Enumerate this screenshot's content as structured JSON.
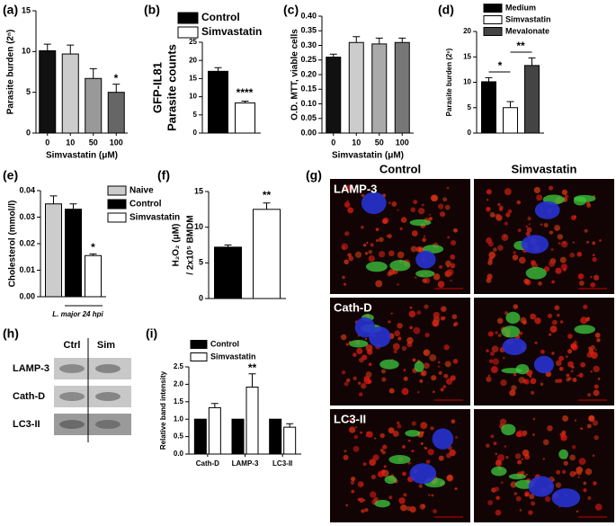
{
  "chart_data": [
    {
      "type": "bar",
      "panel": "(a)",
      "ylabel": "Parasite burden (2ⁿ)",
      "xlabel": "Simvastatin (μM)",
      "categories": [
        "0",
        "10",
        "50",
        "100"
      ],
      "series": [
        {
          "values": [
            10.1,
            9.7,
            6.7,
            5.0
          ],
          "errors": [
            0.8,
            1.1,
            1.2,
            1.0
          ],
          "colors": [
            "#111111",
            "#cccccc",
            "#999999",
            "#666666"
          ]
        }
      ],
      "ylim": [
        0,
        15
      ],
      "yticks": [
        0,
        5,
        10,
        15
      ],
      "annotations": [
        "*"
      ]
    },
    {
      "type": "bar",
      "panel": "(b)",
      "ylabel": [
        "GFP-IL81",
        "Parasite counts"
      ],
      "series": [
        {
          "name": "Control",
          "color": "#000000",
          "values": [
            17.0
          ],
          "errors": [
            1.0
          ]
        },
        {
          "name": "Simvastatin",
          "color": "#ffffff",
          "values": [
            8.3
          ],
          "errors": [
            0.5
          ]
        }
      ],
      "ylim": [
        0,
        25
      ],
      "yticks": [
        0,
        5,
        10,
        15,
        20,
        25
      ],
      "annotations": [
        "****"
      ]
    },
    {
      "type": "bar",
      "panel": "(c)",
      "ylabel": "O.D. MTT, viable cells",
      "xlabel": "Simvastatin (μM)",
      "categories": [
        "0",
        "10",
        "50",
        "100"
      ],
      "series": [
        {
          "values": [
            0.26,
            0.31,
            0.305,
            0.31
          ],
          "errors": [
            0.01,
            0.02,
            0.02,
            0.015
          ],
          "colors": [
            "#111111",
            "#cccccc",
            "#aaaaaa",
            "#777777"
          ]
        }
      ],
      "ylim": [
        0,
        0.4
      ],
      "yticks": [
        {
          "value": 0,
          "label": "0.00"
        },
        {
          "value": 0.05,
          "label": "0.05"
        },
        {
          "value": 0.1,
          "label": "0.10"
        },
        {
          "value": 0.15,
          "label": "0.15"
        },
        {
          "value": 0.2,
          "label": "0.20"
        },
        {
          "value": 0.25,
          "label": "0.25"
        },
        {
          "value": 0.3,
          "label": "0.30"
        },
        {
          "value": 0.35,
          "label": "0.35"
        },
        {
          "value": 0.4,
          "label": "0.40"
        }
      ]
    },
    {
      "type": "bar",
      "panel": "(d)",
      "ylabel": "Parasite burden (2ⁿ)",
      "series": [
        {
          "name": "Medium",
          "color": "#000000",
          "values": [
            10.1
          ],
          "errors": [
            0.8
          ]
        },
        {
          "name": "Simvastatin",
          "color": "#ffffff",
          "values": [
            5.0
          ],
          "errors": [
            1.2
          ]
        },
        {
          "name": "Mevalonate",
          "color": "#444444",
          "values": [
            13.3
          ],
          "errors": [
            1.5
          ]
        }
      ],
      "ylim": [
        0,
        20
      ],
      "yticks": [
        0,
        5,
        10,
        15,
        20
      ],
      "annotations": [
        "*",
        "**"
      ]
    },
    {
      "type": "bar",
      "panel": "(e)",
      "ylabel": "Cholesterol (mmol/l)",
      "xlabel": "L. major 24 hpi",
      "series": [
        {
          "name": "Naive",
          "color": "#cccccc",
          "values": [
            0.035
          ],
          "errors": [
            0.003
          ]
        },
        {
          "name": "Control",
          "color": "#000000",
          "values": [
            0.033
          ],
          "errors": [
            0.002
          ]
        },
        {
          "name": "Simvastatin",
          "color": "#ffffff",
          "values": [
            0.0155
          ],
          "errors": [
            0.0006
          ]
        }
      ],
      "ylim": [
        0,
        0.04
      ],
      "yticks": [
        {
          "value": 0,
          "label": "0.00"
        },
        {
          "value": 0.01,
          "label": "0.01"
        },
        {
          "value": 0.02,
          "label": "0.02"
        },
        {
          "value": 0.03,
          "label": "0.03"
        },
        {
          "value": 0.04,
          "label": "0.04"
        }
      ],
      "annotations": [
        "*"
      ]
    },
    {
      "type": "bar",
      "panel": "(f)",
      "ylabel": [
        "H₂O₂ (μM)",
        "/ 2x10⁵ BMDM"
      ],
      "series": [
        {
          "values": [
            7.2,
            12.5
          ],
          "errors": [
            0.3,
            0.9
          ],
          "colors": [
            "#000000",
            "#ffffff"
          ]
        }
      ],
      "ylim": [
        0,
        15
      ],
      "yticks": [
        0,
        5,
        10,
        15
      ],
      "annotations": [
        "**"
      ]
    },
    {
      "type": "bar",
      "panel": "(i)",
      "ylabel": "Relative band intensity",
      "categories": [
        "Cath-D",
        "LAMP-3",
        "LC3-II"
      ],
      "series": [
        {
          "name": "Control",
          "color": "#000000",
          "values": [
            1.0,
            1.0,
            1.0
          ]
        },
        {
          "name": "Simvastatin",
          "color": "#ffffff",
          "values": [
            1.33,
            1.92,
            0.77
          ],
          "errors": [
            0.12,
            0.38,
            0.1
          ]
        }
      ],
      "ylim": [
        0,
        2.5
      ],
      "yticks": [
        {
          "value": 0,
          "label": "0.0"
        },
        {
          "value": 0.5,
          "label": "0.5"
        },
        {
          "value": 1,
          "label": "1.0"
        },
        {
          "value": 1.5,
          "label": "1.5"
        },
        {
          "value": 2,
          "label": "2.0"
        },
        {
          "value": 2.5,
          "label": "2.5"
        }
      ],
      "annotations": [
        "**"
      ]
    }
  ],
  "micrograph": {
    "panel": "(g)",
    "columns": [
      "Control",
      "Simvastatin"
    ],
    "rows": [
      "LAMP-3",
      "Cath-D",
      "LC3-II"
    ]
  },
  "blot": {
    "panel": "(h)",
    "columns": [
      "Ctrl",
      "Sim"
    ],
    "rows": [
      "LAMP-3",
      "Cath-D",
      "LC3-II"
    ]
  }
}
